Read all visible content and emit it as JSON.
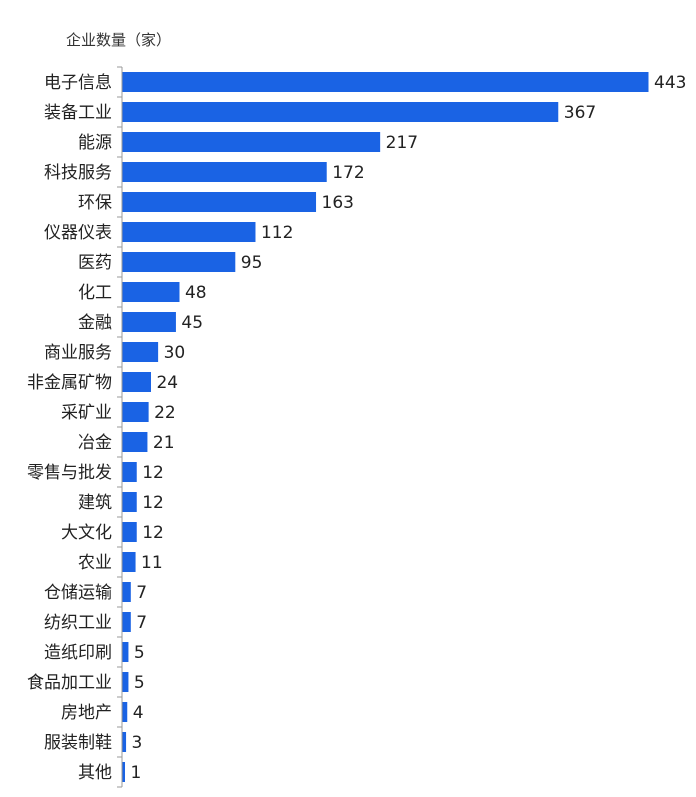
{
  "chart_data": {
    "type": "bar",
    "orientation": "horizontal",
    "title": "企业数量（家）",
    "categories": [
      "电子信息",
      "装备工业",
      "能源",
      "科技服务",
      "环保",
      "仪器仪表",
      "医药",
      "化工",
      "金融",
      "商业服务",
      "非金属矿物",
      "采矿业",
      "冶金",
      "零售与批发",
      "建筑",
      "大文化",
      "农业",
      "仓储运输",
      "纺织工业",
      "造纸印刷",
      "食品加工业",
      "房地产",
      "服装制鞋",
      "其他"
    ],
    "values": [
      443,
      367,
      217,
      172,
      163,
      112,
      95,
      48,
      45,
      30,
      24,
      22,
      21,
      12,
      12,
      12,
      11,
      7,
      7,
      5,
      5,
      4,
      3,
      1
    ],
    "xlim": [
      0,
      443
    ],
    "grid": false,
    "legend": "none",
    "bar_color": "#1a63e4"
  }
}
